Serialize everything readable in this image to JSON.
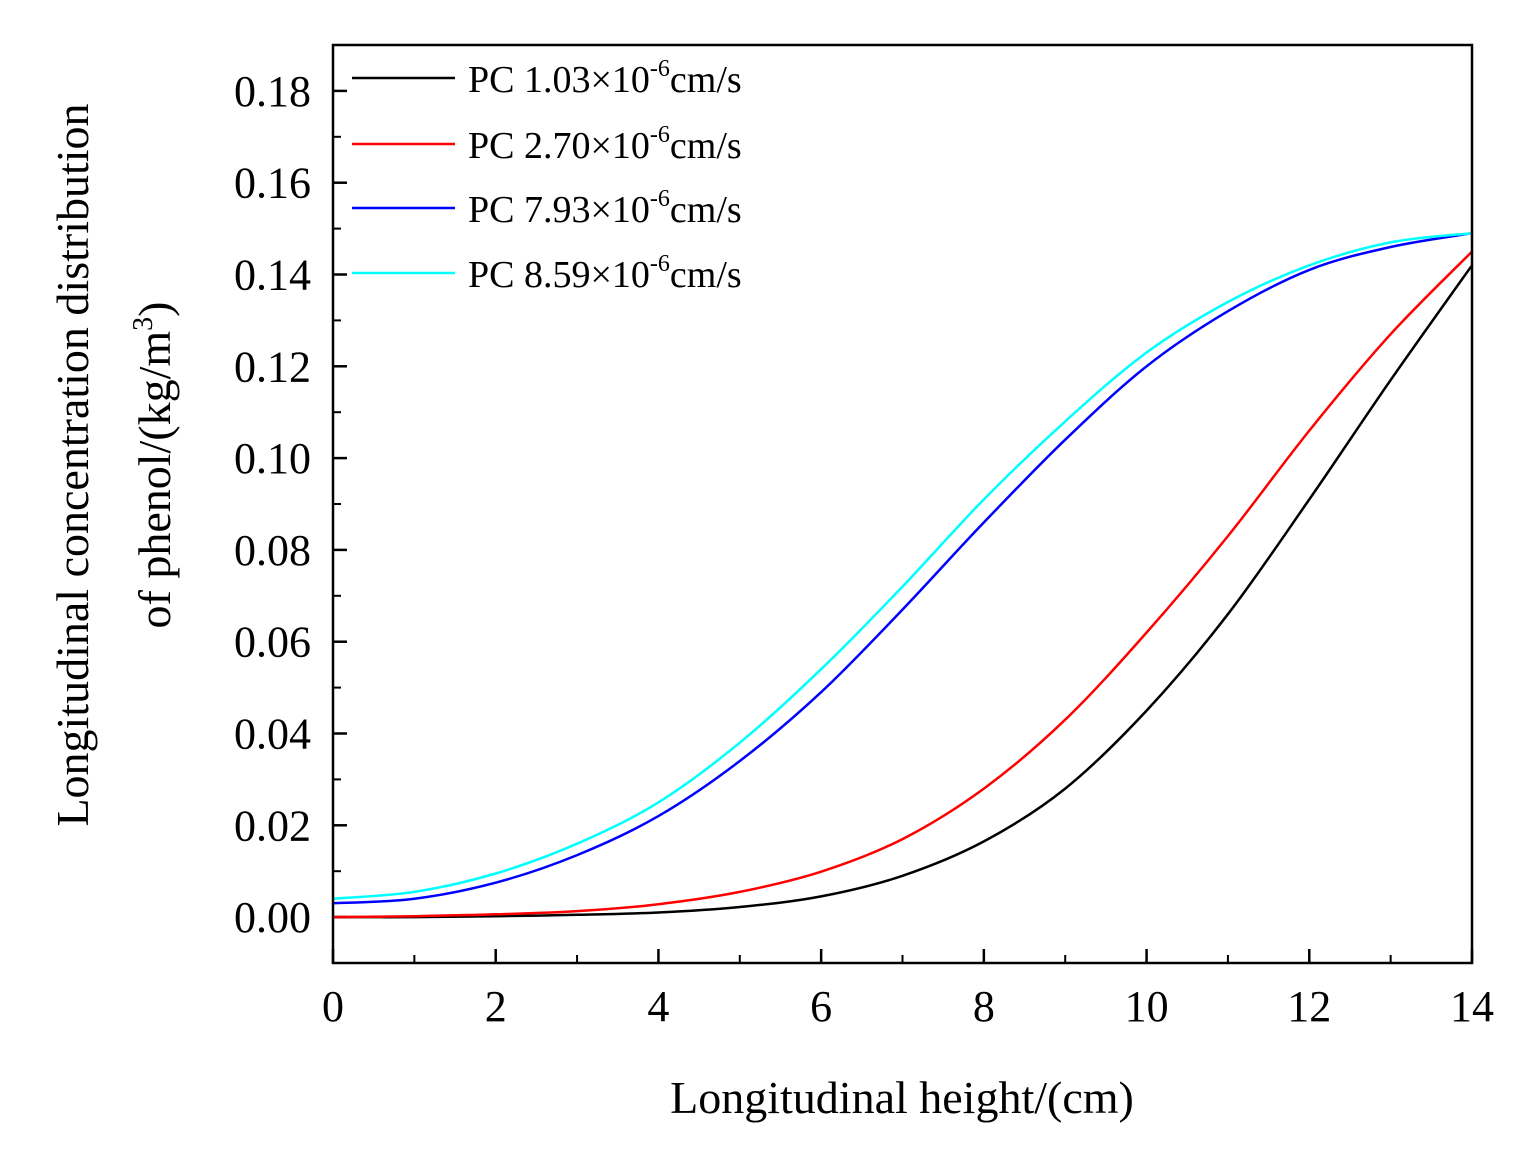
{
  "chart_data": {
    "type": "line",
    "title": "",
    "xlabel": "Longitudinal height/(cm)",
    "ylabel_line1": "Longitudinal concentration distribution",
    "ylabel_line2_prefix": "of phenol/(kg/m",
    "ylabel_line2_sup": "3",
    "ylabel_line2_suffix": ")",
    "xlim": [
      0,
      14
    ],
    "ylim": [
      -0.01,
      0.19
    ],
    "xticks": [
      0,
      2,
      4,
      6,
      8,
      10,
      12,
      14
    ],
    "xtick_labels": [
      "0",
      "2",
      "4",
      "6",
      "8",
      "10",
      "12",
      "14"
    ],
    "yticks": [
      0.0,
      0.02,
      0.04,
      0.06,
      0.08,
      0.1,
      0.12,
      0.14,
      0.16,
      0.18
    ],
    "ytick_labels": [
      "0.00",
      "0.02",
      "0.04",
      "0.06",
      "0.08",
      "0.10",
      "0.12",
      "0.14",
      "0.16",
      "0.18"
    ],
    "grid": false,
    "legend_position": "top-left",
    "x": [
      0,
      1,
      2,
      3,
      4,
      5,
      6,
      7,
      8,
      9,
      10,
      11,
      12,
      13,
      14
    ],
    "series": [
      {
        "name_prefix": "PC 1.03×10",
        "name_sup": "-6",
        "name_suffix": "cm/s",
        "color": "#000000",
        "values": [
          0.0,
          0.0,
          0.0002,
          0.0005,
          0.001,
          0.0022,
          0.0045,
          0.009,
          0.0165,
          0.028,
          0.045,
          0.066,
          0.091,
          0.117,
          0.142
        ]
      },
      {
        "name_prefix": "PC 2.70×10",
        "name_sup": "-6",
        "name_suffix": "cm/s",
        "color": "#ff0000",
        "values": [
          0.0,
          0.0002,
          0.0006,
          0.0013,
          0.0028,
          0.0055,
          0.0099,
          0.017,
          0.028,
          0.043,
          0.062,
          0.083,
          0.106,
          0.127,
          0.145
        ]
      },
      {
        "name_prefix": "PC 7.93×10",
        "name_sup": "-6",
        "name_suffix": "cm/s",
        "color": "#0000ff",
        "values": [
          0.003,
          0.004,
          0.0075,
          0.0135,
          0.022,
          0.034,
          0.049,
          0.067,
          0.086,
          0.104,
          0.12,
          0.132,
          0.141,
          0.146,
          0.149
        ]
      },
      {
        "name_prefix": "PC 8.59×10",
        "name_sup": "-6",
        "name_suffix": "cm/s",
        "color": "#00ffff",
        "values": [
          0.004,
          0.0055,
          0.0095,
          0.016,
          0.025,
          0.038,
          0.054,
          0.072,
          0.091,
          0.108,
          0.123,
          0.134,
          0.142,
          0.147,
          0.149
        ]
      }
    ]
  }
}
